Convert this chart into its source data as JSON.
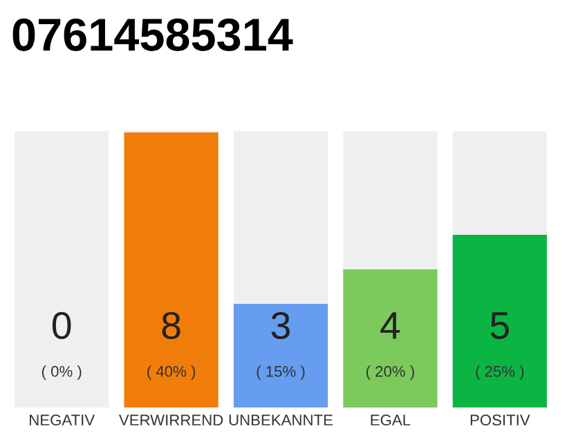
{
  "chart_data": {
    "type": "bar",
    "title": "07614585314",
    "stacked": true,
    "categories": [
      "NEGATIV",
      "VERWIRREND",
      "UNBEKANNTE",
      "EGAL",
      "POSITIV"
    ],
    "series": [
      {
        "colors": [
          "#e0204a",
          "#f07d0a",
          "#669df0",
          "#7cc95c",
          "#0bb543"
        ],
        "values": [
          0,
          8,
          3,
          4,
          5
        ],
        "value_labels": [
          "0",
          "8",
          "3",
          "4",
          "5"
        ]
      },
      {
        "color": "#efefef",
        "values": [
          8,
          0,
          5,
          4,
          3
        ]
      }
    ],
    "ylim": [
      0,
      8
    ],
    "tick_labels": "x",
    "grid": false,
    "legend": false,
    "annotations": [
      "( 0% )",
      "( 40% )",
      "( 15% )",
      "( 20% )",
      "( 25% )"
    ]
  }
}
